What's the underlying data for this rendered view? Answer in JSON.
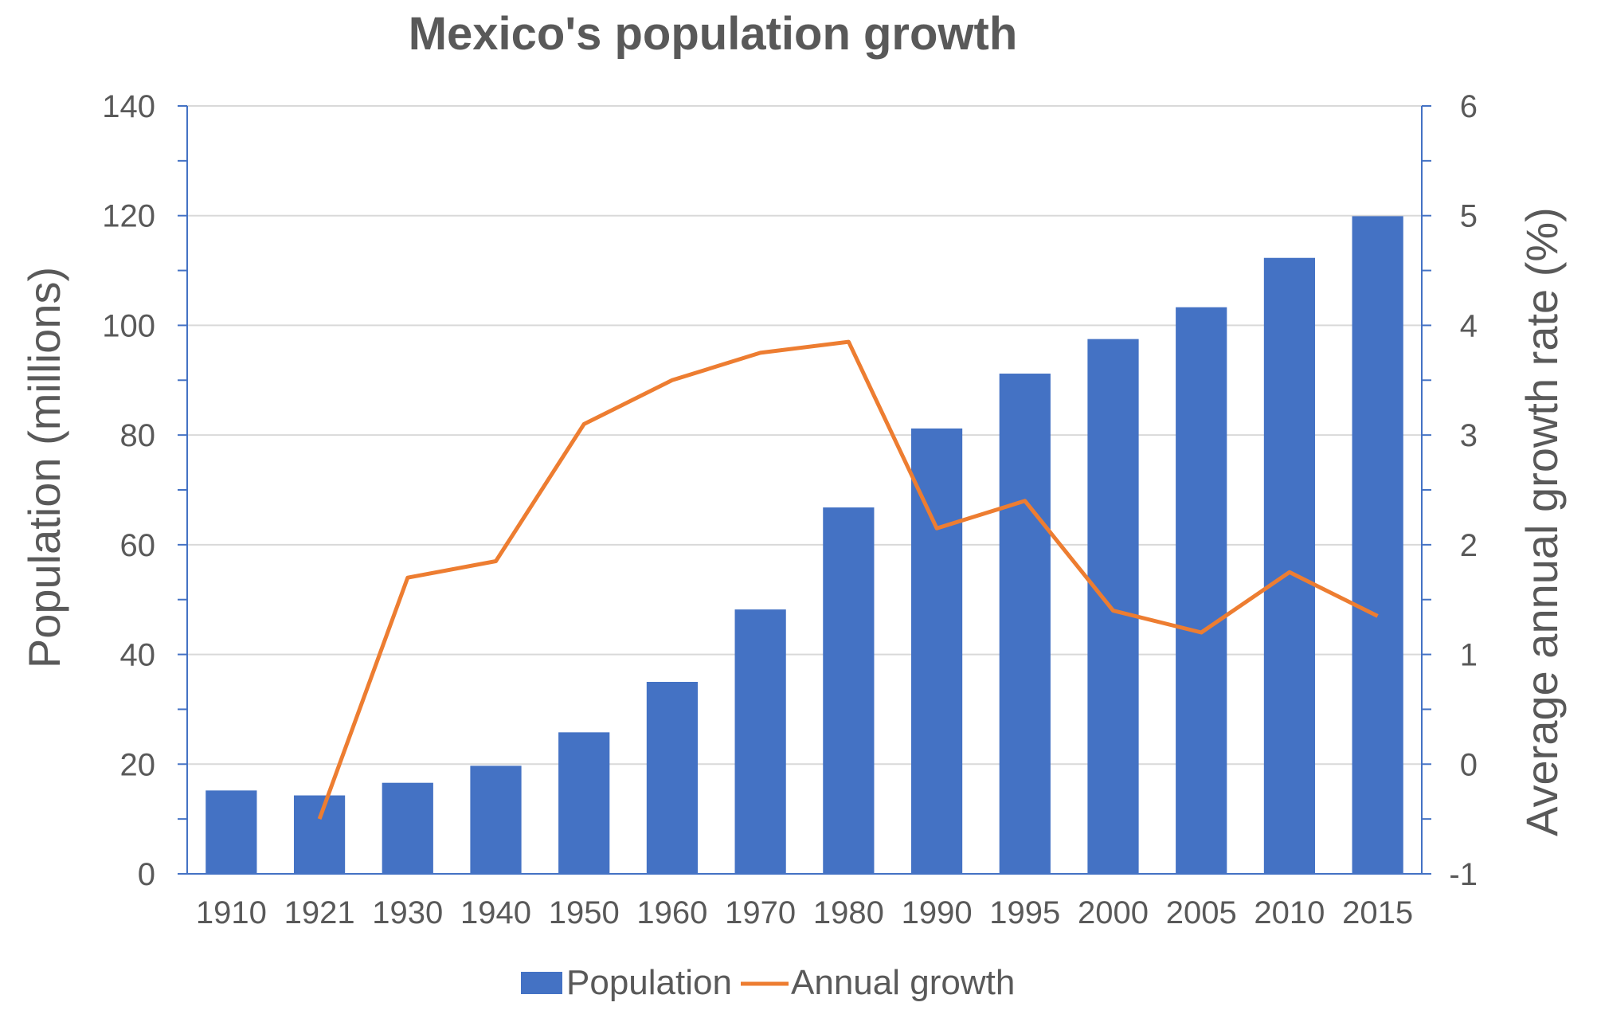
{
  "chart_data": {
    "type": "bar",
    "title": "Mexico's population growth",
    "categories": [
      "1910",
      "1921",
      "1930",
      "1940",
      "1950",
      "1960",
      "1970",
      "1980",
      "1990",
      "1995",
      "2000",
      "2005",
      "2010",
      "2015"
    ],
    "series": [
      {
        "name": "Population",
        "type": "bar",
        "axis": "left",
        "color": "#4472c4",
        "values": [
          15.2,
          14.3,
          16.6,
          19.7,
          25.8,
          35.0,
          48.2,
          66.8,
          81.2,
          91.2,
          97.5,
          103.3,
          112.3,
          119.9
        ]
      },
      {
        "name": "Annual growth",
        "type": "line",
        "axis": "right",
        "color": "#ed7d31",
        "values": [
          null,
          -0.5,
          1.7,
          1.85,
          3.1,
          3.5,
          3.75,
          3.85,
          2.15,
          2.4,
          1.4,
          1.2,
          1.75,
          1.35
        ]
      }
    ],
    "ylabel": "Population (millions)",
    "y2label": "Average annual growth rate (%)",
    "ylim": [
      0,
      140
    ],
    "yticks": [
      "0",
      "20",
      "40",
      "60",
      "80",
      "100",
      "120",
      "140"
    ],
    "y2lim": [
      -1,
      6
    ],
    "y2ticks": [
      "-1",
      "0",
      "1",
      "2",
      "3",
      "4",
      "5",
      "6"
    ],
    "grid": true,
    "legend": "bottom"
  }
}
